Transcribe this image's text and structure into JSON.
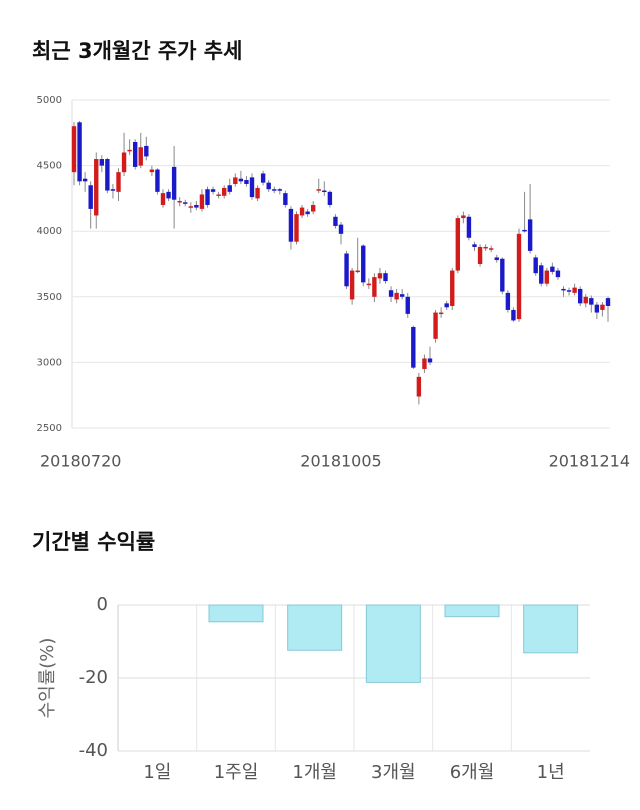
{
  "chart_data": [
    {
      "type": "candlestick",
      "title": "최근 3개월간 주가 추세",
      "categories": [
        "20180720",
        null,
        null,
        null,
        null,
        null,
        null,
        null,
        null,
        null,
        null,
        null,
        null,
        null,
        null,
        null,
        null,
        null,
        null,
        null,
        null,
        null,
        null,
        null,
        null,
        null,
        null,
        null,
        null,
        null,
        null,
        null,
        null,
        null,
        null,
        null,
        null,
        null,
        null,
        null,
        null,
        null,
        null,
        null,
        null,
        null,
        null,
        null,
        "20181005",
        null,
        null,
        null,
        null,
        null,
        null,
        null,
        null,
        null,
        null,
        null,
        null,
        null,
        null,
        null,
        null,
        null,
        null,
        null,
        null,
        null,
        null,
        null,
        null,
        null,
        null,
        null,
        null,
        null,
        null,
        null,
        null,
        null,
        null,
        null,
        null,
        null,
        null,
        null,
        null,
        null,
        null,
        null,
        null,
        null,
        null,
        null,
        "20181214"
      ],
      "ohlc": [
        [
          4450,
          4830,
          4350,
          4800
        ],
        [
          4830,
          4840,
          4350,
          4380
        ],
        [
          4400,
          4450,
          4300,
          4380
        ],
        [
          4350,
          4380,
          4020,
          4170
        ],
        [
          4120,
          4600,
          4020,
          4550
        ],
        [
          4550,
          4580,
          4450,
          4500
        ],
        [
          4550,
          4560,
          4290,
          4310
        ],
        [
          4320,
          4360,
          4250,
          4310
        ],
        [
          4300,
          4480,
          4230,
          4450
        ],
        [
          4450,
          4750,
          4420,
          4600
        ],
        [
          4620,
          4700,
          4580,
          4620
        ],
        [
          4680,
          4700,
          4470,
          4490
        ],
        [
          4500,
          4750,
          4480,
          4640
        ],
        [
          4650,
          4720,
          4540,
          4570
        ],
        [
          4450,
          4500,
          4420,
          4470
        ],
        [
          4470,
          4480,
          4280,
          4300
        ],
        [
          4200,
          4320,
          4180,
          4290
        ],
        [
          4300,
          4320,
          4230,
          4250
        ],
        [
          4490,
          4650,
          4020,
          4240
        ],
        [
          4220,
          4260,
          4190,
          4230
        ],
        [
          4220,
          4240,
          4190,
          4210
        ],
        [
          4180,
          4220,
          4140,
          4190
        ],
        [
          4200,
          4230,
          4160,
          4180
        ],
        [
          4170,
          4320,
          4150,
          4280
        ],
        [
          4320,
          4340,
          4180,
          4200
        ],
        [
          4320,
          4340,
          4280,
          4300
        ],
        [
          4270,
          4300,
          4250,
          4280
        ],
        [
          4270,
          4350,
          4250,
          4330
        ],
        [
          4350,
          4400,
          4280,
          4300
        ],
        [
          4360,
          4440,
          4340,
          4410
        ],
        [
          4400,
          4460,
          4360,
          4380
        ],
        [
          4390,
          4420,
          4340,
          4360
        ],
        [
          4410,
          4440,
          4240,
          4260
        ],
        [
          4250,
          4350,
          4230,
          4330
        ],
        [
          4440,
          4460,
          4350,
          4370
        ],
        [
          4370,
          4390,
          4300,
          4320
        ],
        [
          4320,
          4340,
          4290,
          4310
        ],
        [
          4320,
          4330,
          4280,
          4310
        ],
        [
          4290,
          4310,
          4180,
          4200
        ],
        [
          4170,
          4190,
          3860,
          3920
        ],
        [
          3920,
          4150,
          3900,
          4130
        ],
        [
          4120,
          4200,
          4100,
          4180
        ],
        [
          4150,
          4170,
          4110,
          4130
        ],
        [
          4150,
          4230,
          4130,
          4200
        ],
        [
          4310,
          4400,
          4290,
          4320
        ],
        [
          4310,
          4380,
          4270,
          4300
        ],
        [
          4300,
          4310,
          4180,
          4200
        ],
        [
          4110,
          4130,
          4020,
          4040
        ],
        [
          4050,
          4070,
          3900,
          3980
        ],
        [
          3830,
          3850,
          3560,
          3580
        ],
        [
          3480,
          3720,
          3440,
          3700
        ],
        [
          3700,
          3950,
          3680,
          3700
        ],
        [
          3890,
          3900,
          3580,
          3610
        ],
        [
          3600,
          3640,
          3560,
          3600
        ],
        [
          3500,
          3680,
          3460,
          3650
        ],
        [
          3640,
          3720,
          3600,
          3680
        ],
        [
          3680,
          3700,
          3600,
          3620
        ],
        [
          3550,
          3580,
          3460,
          3500
        ],
        [
          3480,
          3560,
          3450,
          3530
        ],
        [
          3520,
          3560,
          3480,
          3500
        ],
        [
          3500,
          3530,
          3340,
          3370
        ],
        [
          3270,
          3280,
          2950,
          2960
        ],
        [
          2740,
          2920,
          2680,
          2890
        ],
        [
          2950,
          3060,
          2920,
          3030
        ],
        [
          3030,
          3120,
          2980,
          3000
        ],
        [
          3180,
          3400,
          3150,
          3380
        ],
        [
          3380,
          3420,
          3340,
          3380
        ],
        [
          3450,
          3470,
          3400,
          3420
        ],
        [
          3430,
          3720,
          3400,
          3700
        ],
        [
          3700,
          4120,
          3680,
          4100
        ],
        [
          4100,
          4150,
          4060,
          4120
        ],
        [
          4110,
          4130,
          3930,
          3950
        ],
        [
          3900,
          3920,
          3850,
          3880
        ],
        [
          3750,
          3900,
          3730,
          3880
        ],
        [
          3880,
          3900,
          3850,
          3880
        ],
        [
          3870,
          3890,
          3840,
          3870
        ],
        [
          3800,
          3820,
          3760,
          3780
        ],
        [
          3790,
          3800,
          3520,
          3540
        ],
        [
          3530,
          3550,
          3380,
          3400
        ],
        [
          3400,
          3420,
          3310,
          3320
        ],
        [
          3330,
          4020,
          3310,
          3980
        ],
        [
          4010,
          4300,
          3990,
          4000
        ],
        [
          4090,
          4360,
          3830,
          3850
        ],
        [
          3800,
          3820,
          3660,
          3680
        ],
        [
          3740,
          3760,
          3580,
          3600
        ],
        [
          3600,
          3720,
          3580,
          3700
        ],
        [
          3730,
          3760,
          3670,
          3690
        ],
        [
          3700,
          3720,
          3630,
          3650
        ],
        [
          3560,
          3580,
          3500,
          3550
        ],
        [
          3550,
          3570,
          3510,
          3540
        ],
        [
          3530,
          3600,
          3510,
          3570
        ],
        [
          3560,
          3580,
          3430,
          3450
        ],
        [
          3450,
          3520,
          3420,
          3500
        ],
        [
          3490,
          3510,
          3380,
          3440
        ],
        [
          3440,
          3460,
          3330,
          3380
        ],
        [
          3400,
          3460,
          3350,
          3440
        ],
        [
          3490,
          3500,
          3310,
          3430
        ]
      ],
      "up_color": "#d21c1c",
      "down_color": "#1a1ac8",
      "ylim": [
        2500,
        5000
      ],
      "yticks": [
        2500,
        3000,
        3500,
        4000,
        4500,
        5000
      ],
      "grid": true
    },
    {
      "type": "bar",
      "title": "기간별 수익률",
      "y_label": "수익률(%)",
      "categories": [
        "1일",
        "1주일",
        "1개월",
        "3개월",
        "6개월",
        "1년"
      ],
      "values": [
        0,
        -4.6,
        -12.4,
        -21.2,
        -3.2,
        -13.1
      ],
      "color": "#b0ebf3",
      "edge_color": "#86c9d6",
      "ylim": [
        -40,
        0
      ],
      "yticks": [
        -40,
        -20,
        0
      ],
      "grid": true
    }
  ]
}
